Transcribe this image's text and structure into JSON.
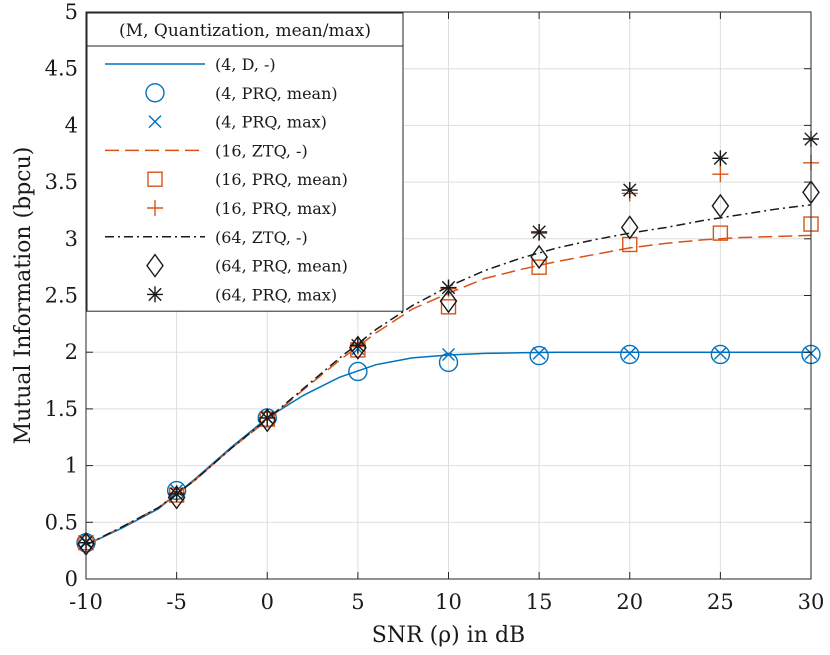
{
  "chart_data": {
    "type": "line",
    "xlabel": "SNR (ρ) in dB",
    "ylabel": "Mutual Information (bpcu)",
    "xlim": [
      -10,
      30
    ],
    "ylim": [
      0,
      5
    ],
    "xticks": [
      -10,
      -5,
      0,
      5,
      10,
      15,
      20,
      25,
      30
    ],
    "yticks": [
      0,
      0.5,
      1,
      1.5,
      2,
      2.5,
      3,
      3.5,
      4,
      4.5,
      5
    ],
    "xtick_labels": [
      "-10",
      "-5",
      "0",
      "5",
      "10",
      "15",
      "20",
      "25",
      "30"
    ],
    "ytick_labels": [
      "0",
      "0.5",
      "1",
      "1.5",
      "2",
      "2.5",
      "3",
      "3.5",
      "4",
      "4.5",
      "5"
    ],
    "grid": true,
    "legend_title": "(M, Quantization, mean/max)",
    "legend_position": "top-left",
    "series": [
      {
        "name": "(4, D, -)",
        "style": "line",
        "dash": "solid",
        "color": "#0072BD",
        "x": [
          -10,
          -8,
          -6,
          -4,
          -2,
          0,
          2,
          4,
          6,
          8,
          10,
          12,
          14,
          16,
          18,
          20,
          22,
          24,
          26,
          28,
          30
        ],
        "y": [
          0.3,
          0.45,
          0.62,
          0.88,
          1.16,
          1.42,
          1.62,
          1.78,
          1.89,
          1.95,
          1.975,
          1.99,
          1.995,
          2.0,
          2.0,
          2.0,
          2.0,
          2.0,
          2.0,
          2.0,
          2.0
        ]
      },
      {
        "name": "(4, PRQ, mean)",
        "style": "marker",
        "marker": "circle",
        "color": "#0072BD",
        "x": [
          -10,
          -5,
          0,
          5,
          10,
          15,
          20,
          25,
          30
        ],
        "y": [
          0.32,
          0.78,
          1.42,
          1.83,
          1.91,
          1.97,
          1.98,
          1.98,
          1.98
        ]
      },
      {
        "name": "(4, PRQ, max)",
        "style": "marker",
        "marker": "x",
        "color": "#0072BD",
        "x": [
          -10,
          -5,
          0,
          5,
          10,
          15,
          20,
          25,
          30
        ],
        "y": [
          0.33,
          0.78,
          1.42,
          2.03,
          1.98,
          1.99,
          1.99,
          1.99,
          1.99
        ]
      },
      {
        "name": "(16, ZTQ, -)",
        "style": "line",
        "dash": "dashed",
        "color": "#D95319",
        "x": [
          -10,
          -8,
          -6,
          -4,
          -2,
          0,
          2,
          4,
          6,
          8,
          10,
          12,
          14,
          16,
          18,
          20,
          22,
          24,
          26,
          28,
          30
        ],
        "y": [
          0.3,
          0.46,
          0.63,
          0.87,
          1.15,
          1.4,
          1.67,
          1.93,
          2.17,
          2.38,
          2.52,
          2.65,
          2.73,
          2.8,
          2.86,
          2.92,
          2.96,
          2.99,
          3.01,
          3.02,
          3.03
        ]
      },
      {
        "name": "(16, PRQ, mean)",
        "style": "marker",
        "marker": "square",
        "color": "#D95319",
        "x": [
          -10,
          -5,
          0,
          5,
          10,
          15,
          20,
          25,
          30
        ],
        "y": [
          0.32,
          0.74,
          1.41,
          2.02,
          2.4,
          2.75,
          2.95,
          3.05,
          3.13
        ]
      },
      {
        "name": "(16, PRQ, max)",
        "style": "marker",
        "marker": "plus",
        "color": "#D95319",
        "x": [
          -10,
          -5,
          0,
          5,
          10,
          15,
          20,
          25,
          30
        ],
        "y": [
          0.32,
          0.76,
          1.42,
          2.05,
          2.56,
          3.05,
          3.4,
          3.57,
          3.67
        ]
      },
      {
        "name": "(64, ZTQ, -)",
        "style": "line",
        "dash": "dashdot",
        "color": "#1a1a1a",
        "x": [
          -10,
          -8,
          -6,
          -4,
          -2,
          0,
          2,
          4,
          6,
          8,
          10,
          12,
          14,
          16,
          18,
          20,
          22,
          24,
          26,
          28,
          30
        ],
        "y": [
          0.3,
          0.46,
          0.63,
          0.87,
          1.15,
          1.41,
          1.68,
          1.95,
          2.2,
          2.41,
          2.58,
          2.72,
          2.83,
          2.92,
          2.99,
          3.05,
          3.1,
          3.16,
          3.21,
          3.26,
          3.3
        ]
      },
      {
        "name": "(64, PRQ, mean)",
        "style": "marker",
        "marker": "diamond",
        "color": "#1a1a1a",
        "x": [
          -10,
          -5,
          0,
          5,
          10,
          15,
          20,
          25,
          30
        ],
        "y": [
          0.31,
          0.72,
          1.4,
          2.04,
          2.45,
          2.84,
          3.1,
          3.29,
          3.41
        ]
      },
      {
        "name": "(64, PRQ, max)",
        "style": "marker",
        "marker": "asterisk",
        "color": "#1a1a1a",
        "x": [
          -10,
          -5,
          0,
          5,
          10,
          15,
          20,
          25,
          30
        ],
        "y": [
          0.32,
          0.75,
          1.42,
          2.06,
          2.57,
          3.06,
          3.43,
          3.71,
          3.88
        ]
      }
    ]
  }
}
